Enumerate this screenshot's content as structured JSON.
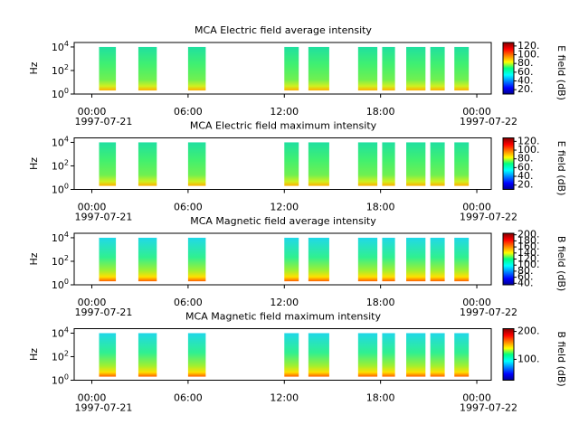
{
  "chart_data": [
    {
      "type": "spectrogram",
      "title": "MCA  Electric field average intensity",
      "ylabel": "Hz",
      "colorbar_label": "E field (dB)",
      "yscale": "log",
      "ylim": [
        1,
        24000
      ],
      "yticks": [
        {
          "value": 1,
          "label": "10^0"
        },
        {
          "value": 100,
          "label": "10^2"
        },
        {
          "value": 10000,
          "label": "10^4"
        }
      ],
      "xlim": [
        -1.1,
        24.9
      ],
      "xticks": [
        {
          "value": 0,
          "label": "00:00"
        },
        {
          "value": 6,
          "label": "06:00"
        },
        {
          "value": 12,
          "label": "12:00"
        },
        {
          "value": 18,
          "label": "18:00"
        },
        {
          "value": 24,
          "label": "00:00"
        }
      ],
      "x_date_labels": [
        {
          "value": 0,
          "label": "1997-07-21"
        },
        {
          "value": 24,
          "label": "1997-07-22"
        }
      ],
      "frequency_range": [
        2,
        10000
      ],
      "intervals": [
        [
          0.45,
          1.5
        ],
        [
          2.9,
          4.05
        ],
        [
          6.0,
          7.1
        ],
        [
          12.0,
          12.9
        ],
        [
          13.5,
          14.8
        ],
        [
          16.6,
          17.8
        ],
        [
          18.1,
          18.9
        ],
        [
          19.6,
          20.8
        ],
        [
          21.1,
          22.0
        ],
        [
          22.6,
          23.5
        ]
      ],
      "clim": [
        10,
        128
      ],
      "cticks": [
        {
          "value": 20,
          "label": "20."
        },
        {
          "value": 40,
          "label": "40."
        },
        {
          "value": 60,
          "label": "60."
        },
        {
          "value": 80,
          "label": "80."
        },
        {
          "value": 100,
          "label": "100."
        },
        {
          "value": 120,
          "label": "120."
        }
      ]
    },
    {
      "type": "spectrogram",
      "title": "MCA  Electric field maximum intensity",
      "ylabel": "Hz",
      "colorbar_label": "E field (dB)",
      "yscale": "log",
      "ylim": [
        1,
        24000
      ],
      "yticks": [
        {
          "value": 1,
          "label": "10^0"
        },
        {
          "value": 100,
          "label": "10^2"
        },
        {
          "value": 10000,
          "label": "10^4"
        }
      ],
      "xlim": [
        -1.1,
        24.9
      ],
      "xticks": [
        {
          "value": 0,
          "label": "00:00"
        },
        {
          "value": 6,
          "label": "06:00"
        },
        {
          "value": 12,
          "label": "12:00"
        },
        {
          "value": 18,
          "label": "18:00"
        },
        {
          "value": 24,
          "label": "00:00"
        }
      ],
      "x_date_labels": [
        {
          "value": 0,
          "label": "1997-07-21"
        },
        {
          "value": 24,
          "label": "1997-07-22"
        }
      ],
      "frequency_range": [
        2,
        10000
      ],
      "intervals": [
        [
          0.45,
          1.5
        ],
        [
          2.9,
          4.05
        ],
        [
          6.0,
          7.1
        ],
        [
          12.0,
          12.9
        ],
        [
          13.5,
          14.8
        ],
        [
          16.6,
          17.8
        ],
        [
          18.1,
          18.9
        ],
        [
          19.6,
          20.8
        ],
        [
          21.1,
          22.0
        ],
        [
          22.6,
          23.5
        ]
      ],
      "clim": [
        10,
        128
      ],
      "cticks": [
        {
          "value": 20,
          "label": "20."
        },
        {
          "value": 40,
          "label": "40."
        },
        {
          "value": 60,
          "label": "60."
        },
        {
          "value": 80,
          "label": "80."
        },
        {
          "value": 100,
          "label": "100."
        },
        {
          "value": 120,
          "label": "120."
        }
      ]
    },
    {
      "type": "spectrogram",
      "title": "MCA  Magnetic field average intensity",
      "ylabel": "Hz",
      "colorbar_label": "B field (dB)",
      "yscale": "log",
      "ylim": [
        1,
        24000
      ],
      "yticks": [
        {
          "value": 1,
          "label": "10^0"
        },
        {
          "value": 100,
          "label": "10^2"
        },
        {
          "value": 10000,
          "label": "10^4"
        }
      ],
      "xlim": [
        -1.1,
        24.9
      ],
      "xticks": [
        {
          "value": 0,
          "label": "00:00"
        },
        {
          "value": 6,
          "label": "06:00"
        },
        {
          "value": 12,
          "label": "12:00"
        },
        {
          "value": 18,
          "label": "18:00"
        },
        {
          "value": 24,
          "label": "00:00"
        }
      ],
      "x_date_labels": [
        {
          "value": 0,
          "label": "1997-07-21"
        },
        {
          "value": 24,
          "label": "1997-07-22"
        }
      ],
      "frequency_range": [
        2,
        10000
      ],
      "intervals": [
        [
          0.45,
          1.5
        ],
        [
          2.9,
          4.05
        ],
        [
          6.0,
          7.1
        ],
        [
          12.0,
          12.9
        ],
        [
          13.5,
          14.8
        ],
        [
          16.6,
          17.8
        ],
        [
          18.1,
          18.9
        ],
        [
          19.6,
          20.8
        ],
        [
          21.1,
          22.0
        ],
        [
          22.6,
          23.5
        ]
      ],
      "clim": [
        35,
        205
      ],
      "cticks": [
        {
          "value": 40,
          "label": "40."
        },
        {
          "value": 60,
          "label": "60."
        },
        {
          "value": 80,
          "label": "80."
        },
        {
          "value": 100,
          "label": "100."
        },
        {
          "value": 120,
          "label": "120."
        },
        {
          "value": 140,
          "label": "140."
        },
        {
          "value": 160,
          "label": "160."
        },
        {
          "value": 180,
          "label": "180."
        },
        {
          "value": 200,
          "label": "200."
        }
      ]
    },
    {
      "type": "spectrogram",
      "title": "MCA  Magnetic field maximum intensity",
      "ylabel": "Hz",
      "colorbar_label": "B field (dB)",
      "yscale": "log",
      "ylim": [
        1,
        24000
      ],
      "yticks": [
        {
          "value": 1,
          "label": "10^0"
        },
        {
          "value": 100,
          "label": "10^2"
        },
        {
          "value": 10000,
          "label": "10^4"
        }
      ],
      "xlim": [
        -1.1,
        24.9
      ],
      "xticks": [
        {
          "value": 0,
          "label": "00:00"
        },
        {
          "value": 6,
          "label": "06:00"
        },
        {
          "value": 12,
          "label": "12:00"
        },
        {
          "value": 18,
          "label": "18:00"
        },
        {
          "value": 24,
          "label": "00:00"
        }
      ],
      "x_date_labels": [
        {
          "value": 0,
          "label": "1997-07-21"
        },
        {
          "value": 24,
          "label": "1997-07-22"
        }
      ],
      "frequency_range": [
        2,
        10000
      ],
      "intervals": [
        [
          0.45,
          1.5
        ],
        [
          2.9,
          4.05
        ],
        [
          6.0,
          7.1
        ],
        [
          12.0,
          12.9
        ],
        [
          13.5,
          14.8
        ],
        [
          16.6,
          17.8
        ],
        [
          18.1,
          18.9
        ],
        [
          19.6,
          20.8
        ],
        [
          21.1,
          22.0
        ],
        [
          22.6,
          23.5
        ]
      ],
      "clim": [
        25,
        210
      ],
      "cticks": [
        {
          "value": 100,
          "label": "100."
        },
        {
          "value": 200,
          "label": "200."
        }
      ]
    }
  ]
}
